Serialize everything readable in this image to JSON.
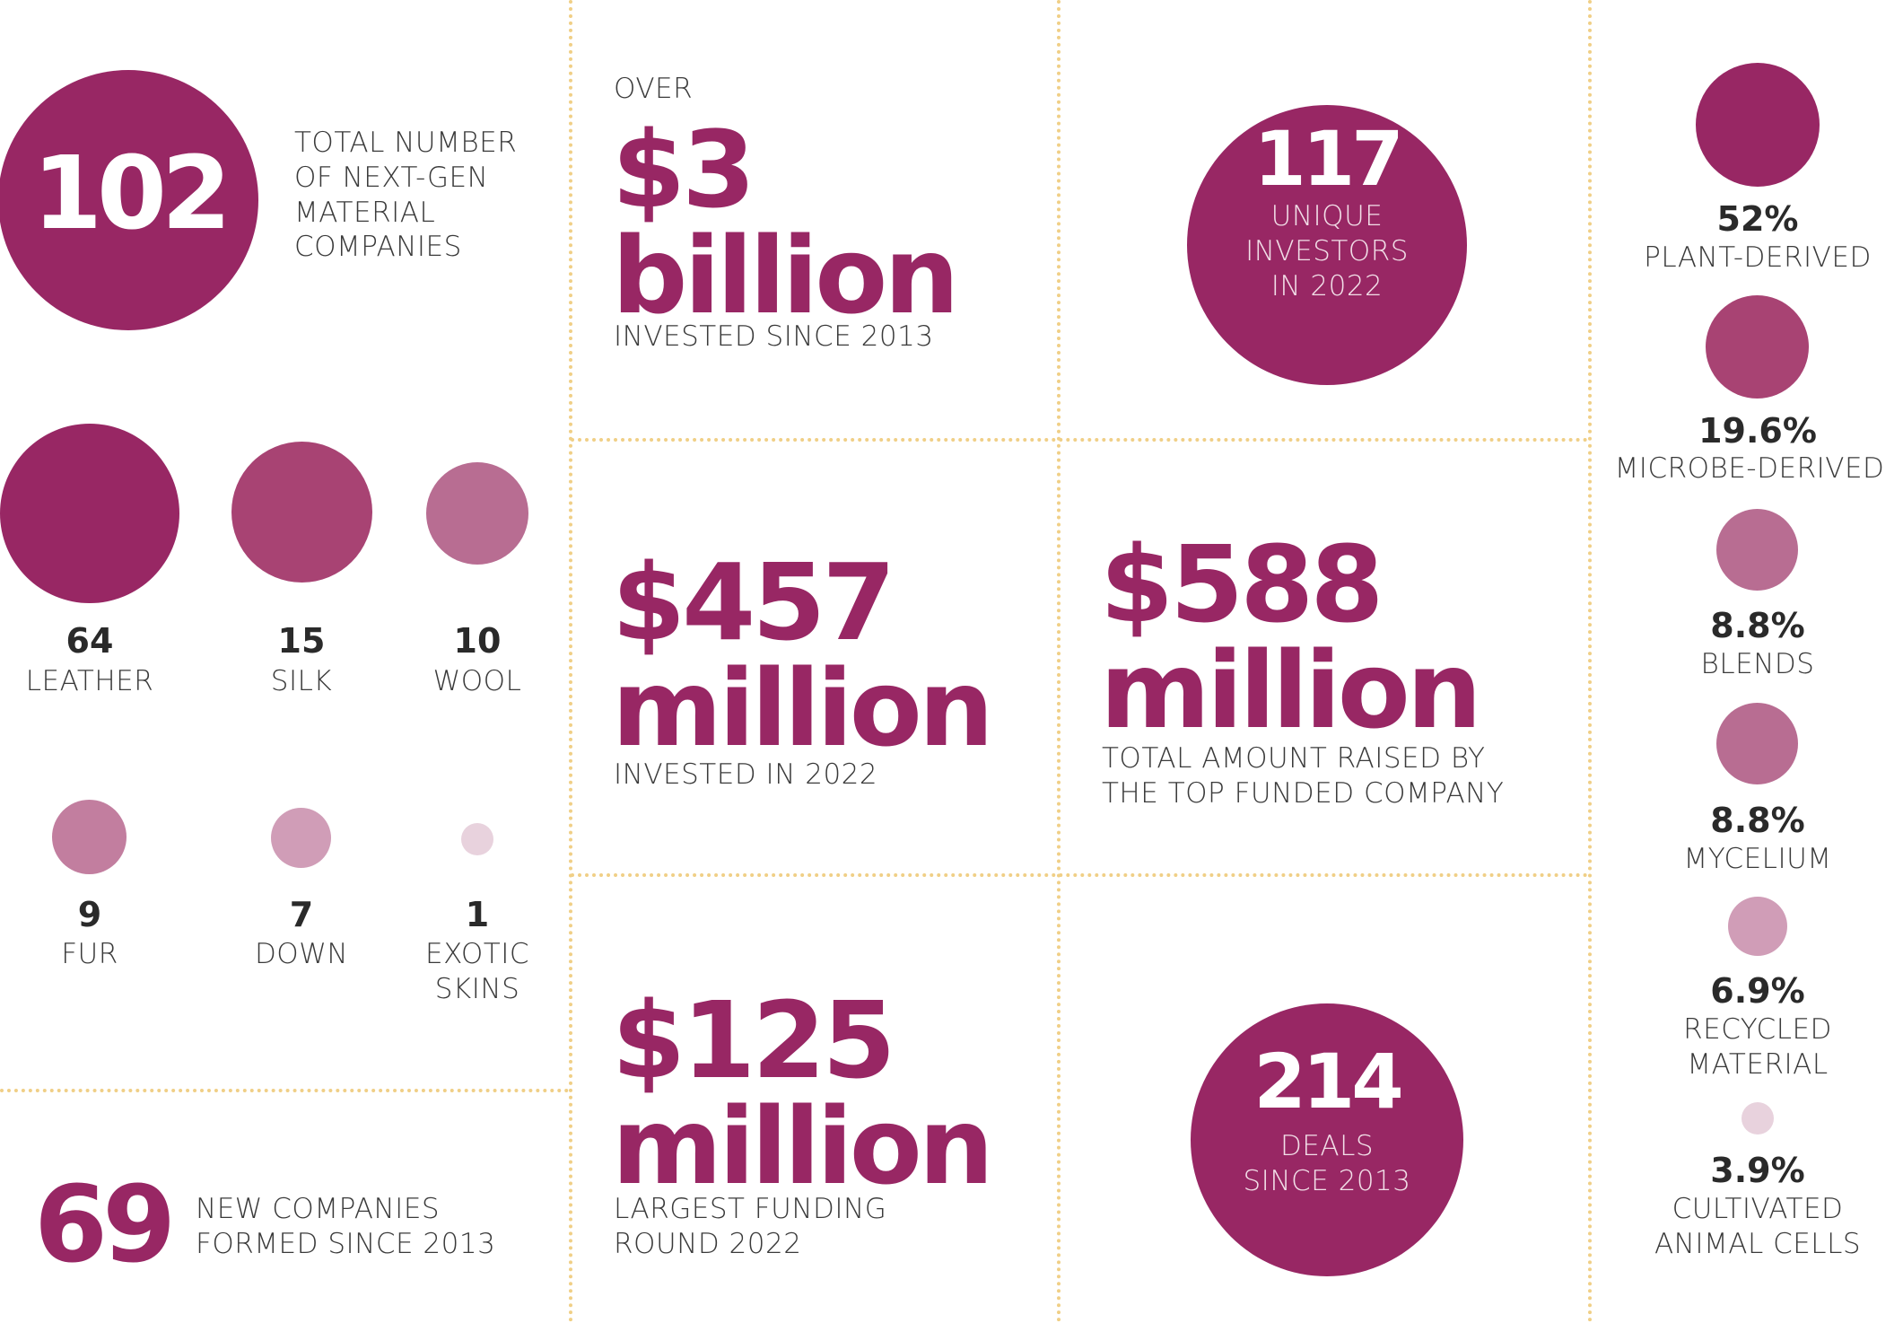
{
  "total": {
    "value": "102",
    "label": "TOTAL NUMBER\nOF NEXT-GEN\nMATERIAL\nCOMPANIES"
  },
  "categories": [
    {
      "value": "64",
      "label": "LEATHER"
    },
    {
      "value": "15",
      "label": "SILK"
    },
    {
      "value": "10",
      "label": "WOOL"
    },
    {
      "value": "9",
      "label": "FUR"
    },
    {
      "value": "7",
      "label": "DOWN"
    },
    {
      "value": "1",
      "label": "EXOTIC\nSKINS"
    }
  ],
  "new_companies": {
    "value": "69",
    "label": "NEW COMPANIES\nFORMED SINCE 2013"
  },
  "invested_total": {
    "pre": "OVER",
    "line1": "$3",
    "line2": "billion",
    "label": "INVESTED SINCE 2013"
  },
  "invested_2022": {
    "line1": "$457",
    "line2": "million",
    "label": "INVESTED IN 2022"
  },
  "largest_round": {
    "line1": "$125",
    "line2": "million",
    "label": "LARGEST FUNDING\nROUND 2022"
  },
  "investors": {
    "value": "117",
    "label": "UNIQUE\nINVESTORS\nIN 2022"
  },
  "top_funded": {
    "line1": "$588",
    "line2": "million",
    "label": "TOTAL AMOUNT RAISED BY\nTHE TOP FUNDED COMPANY"
  },
  "deals": {
    "value": "214",
    "label": "DEALS\nSINCE 2013"
  },
  "sources": [
    {
      "value": "52%",
      "label": "PLANT-DERIVED"
    },
    {
      "value": "19.6%",
      "label": "MICROBE-DERIVED"
    },
    {
      "value": "8.8%",
      "label": "BLENDS"
    },
    {
      "value": "8.8%",
      "label": "MYCELIUM"
    },
    {
      "value": "6.9%",
      "label": "RECYCLED\nMATERIAL"
    },
    {
      "value": "3.9%",
      "label": "CULTIVATED\nANIMAL CELLS"
    }
  ],
  "colors": {
    "primary": "#982764",
    "divider": "#f0cf86",
    "text": "#3a3a3a"
  }
}
